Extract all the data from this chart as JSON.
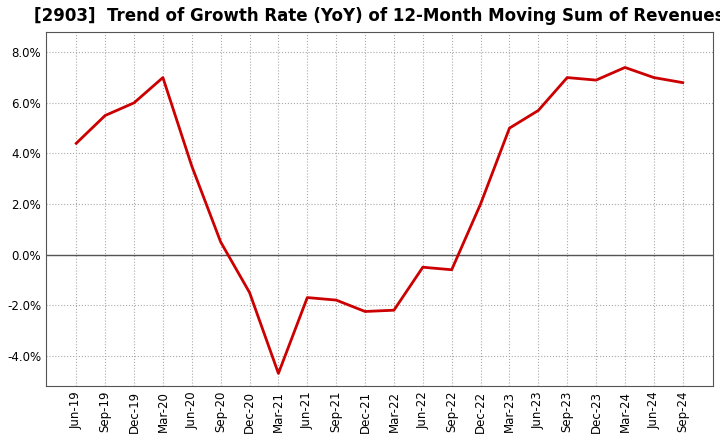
{
  "title": "[2903]  Trend of Growth Rate (YoY) of 12-Month Moving Sum of Revenues",
  "x_labels": [
    "Jun-19",
    "Sep-19",
    "Dec-19",
    "Mar-20",
    "Jun-20",
    "Sep-20",
    "Dec-20",
    "Mar-21",
    "Jun-21",
    "Sep-21",
    "Dec-21",
    "Mar-22",
    "Jun-22",
    "Sep-22",
    "Dec-22",
    "Mar-23",
    "Jun-23",
    "Sep-23",
    "Dec-23",
    "Mar-24",
    "Jun-24",
    "Sep-24"
  ],
  "y_values": [
    4.4,
    5.5,
    6.0,
    7.0,
    3.5,
    0.5,
    -1.5,
    -4.7,
    -1.7,
    -1.8,
    -2.25,
    -2.2,
    -0.5,
    -0.6,
    2.0,
    5.0,
    5.7,
    7.0,
    6.9,
    7.4,
    7.0,
    6.8
  ],
  "line_color": "#cc0000",
  "line_width": 2.0,
  "ylim": [
    -5.2,
    8.8
  ],
  "yticks": [
    -4.0,
    -2.0,
    0.0,
    2.0,
    4.0,
    6.0,
    8.0
  ],
  "bg_color": "#ffffff",
  "plot_bg_color": "#ffffff",
  "grid_color": "#aaaaaa",
  "zero_line_color": "#555555",
  "spine_color": "#555555",
  "title_fontsize": 12,
  "tick_fontsize": 8.5
}
